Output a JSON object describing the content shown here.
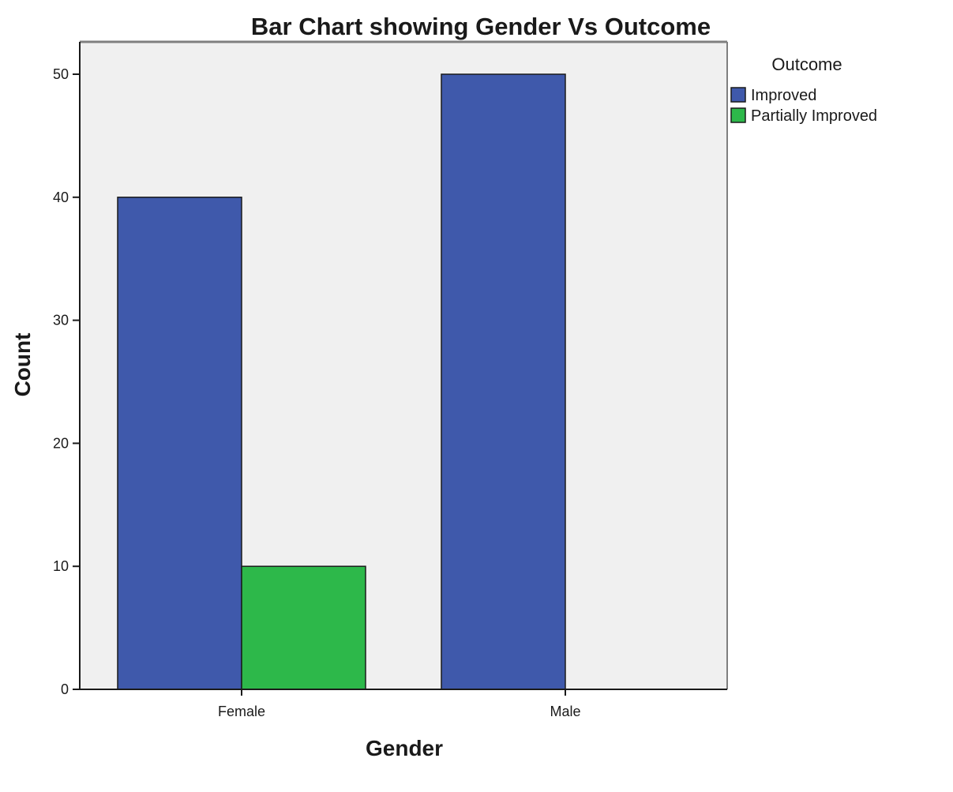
{
  "chart_data": {
    "type": "bar",
    "title": "Bar Chart showing Gender Vs Outcome",
    "xlabel": "Gender",
    "ylabel": "Count",
    "categories": [
      "Female",
      "Male"
    ],
    "series": [
      {
        "name": "Improved",
        "values": [
          40,
          50
        ],
        "color": "#3f59ab"
      },
      {
        "name": "Partially Improved",
        "values": [
          10,
          0
        ],
        "color": "#2db84a"
      }
    ],
    "ylim": [
      0,
      52.5
    ],
    "yticks": [
      0,
      10,
      20,
      30,
      40,
      50
    ],
    "legend": {
      "title": "Outcome",
      "placement": "right"
    },
    "plot_background": "#f0f0f0",
    "grid": false
  }
}
